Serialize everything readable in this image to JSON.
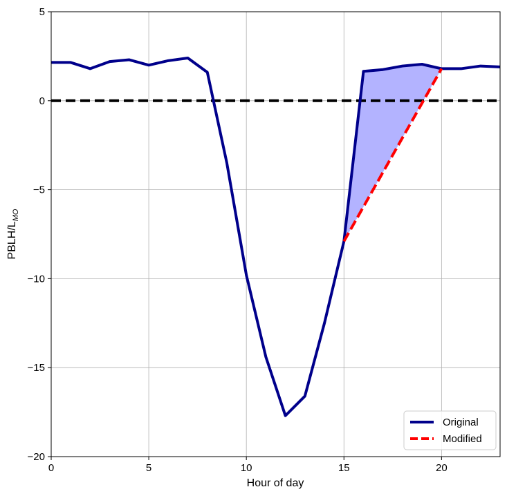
{
  "chart_data": {
    "type": "line",
    "title": "",
    "xlabel": "Hour of day",
    "ylabel": "PBLH/L",
    "ylabel_subscript": "MO",
    "xlim": [
      0,
      23
    ],
    "ylim": [
      -20,
      5
    ],
    "xticks": [
      0,
      5,
      10,
      15,
      20
    ],
    "yticks": [
      5,
      0,
      -5,
      -10,
      -15,
      -20
    ],
    "xtick_labels": [
      "0",
      "5",
      "10",
      "15",
      "20"
    ],
    "ytick_labels": [
      "5",
      "0",
      "−5",
      "−10",
      "−15",
      "−20"
    ],
    "grid": true,
    "reference_line": {
      "y": 0,
      "color": "#000000",
      "style": "dashed"
    },
    "legend": {
      "position": "bottom-right"
    },
    "series": [
      {
        "name": "Original",
        "color": "#00008b",
        "style": "solid",
        "x": [
          0,
          1,
          2,
          3,
          4,
          5,
          6,
          7,
          8,
          9,
          10,
          11,
          12,
          13,
          14,
          15,
          16,
          17,
          18,
          19,
          20,
          21,
          22,
          23
        ],
        "y": [
          2.15,
          2.15,
          1.8,
          2.2,
          2.3,
          2.0,
          2.25,
          2.4,
          1.6,
          -3.5,
          -9.8,
          -14.4,
          -17.7,
          -16.6,
          -12.5,
          -7.9,
          1.65,
          1.75,
          1.95,
          2.05,
          1.8,
          1.8,
          1.95,
          1.9
        ]
      },
      {
        "name": "Modified",
        "color": "#ff0000",
        "style": "dashed",
        "x": [
          15,
          20
        ],
        "y": [
          -7.9,
          1.8
        ]
      }
    ],
    "fill_between": {
      "x": [
        15,
        16,
        17,
        18,
        19,
        20
      ],
      "upper": [
        -7.9,
        1.65,
        1.75,
        1.95,
        2.05,
        1.8
      ],
      "color": "#b3b3ff"
    }
  }
}
